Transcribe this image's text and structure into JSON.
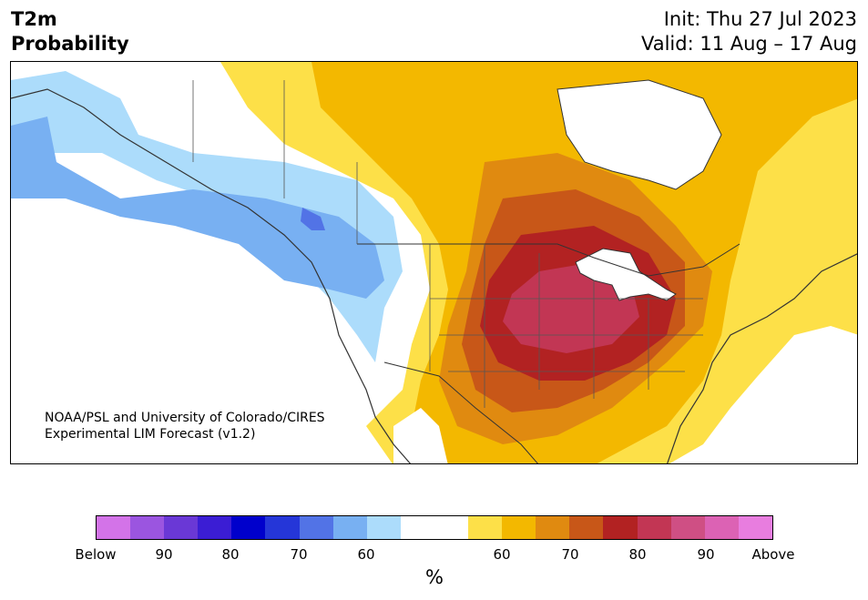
{
  "header": {
    "title_line1": "T2m",
    "title_line2": "Probability",
    "init": "Init: Thu 27 Jul 2023",
    "valid": "Valid: 11 Aug – 17 Aug"
  },
  "credit": {
    "line1": "NOAA/PSL and University of Colorado/CIRES",
    "line2": "Experimental LIM Forecast (v1.2)"
  },
  "colorbar": {
    "unit": "%",
    "colors": [
      "#d373e8",
      "#9b55e0",
      "#6a38d6",
      "#3b1dd4",
      "#0000cc",
      "#2536d8",
      "#5273e6",
      "#78b0f2",
      "#acdcfb",
      "#ffffff",
      "#ffffff",
      "#fde048",
      "#f3b800",
      "#e08a10",
      "#c85718",
      "#b22222",
      "#c23654",
      "#cf4f84",
      "#dc62b4",
      "#e87ddf"
    ],
    "tick_labels": [
      "Below",
      "90",
      "80",
      "70",
      "60",
      "60",
      "70",
      "80",
      "90",
      "Above"
    ]
  },
  "map": {
    "region": "North America",
    "field": "2m temperature probability",
    "colors": {
      "white": "#ffffff",
      "blue_light": "#acdcfb",
      "blue_mid": "#78b0f2",
      "blue_dark": "#5273e6",
      "yellow": "#fde048",
      "gold": "#f3b800",
      "orange": "#e08a10",
      "rust": "#c85718",
      "red": "#b22222",
      "crimson": "#c23654",
      "border": "#333333"
    }
  }
}
